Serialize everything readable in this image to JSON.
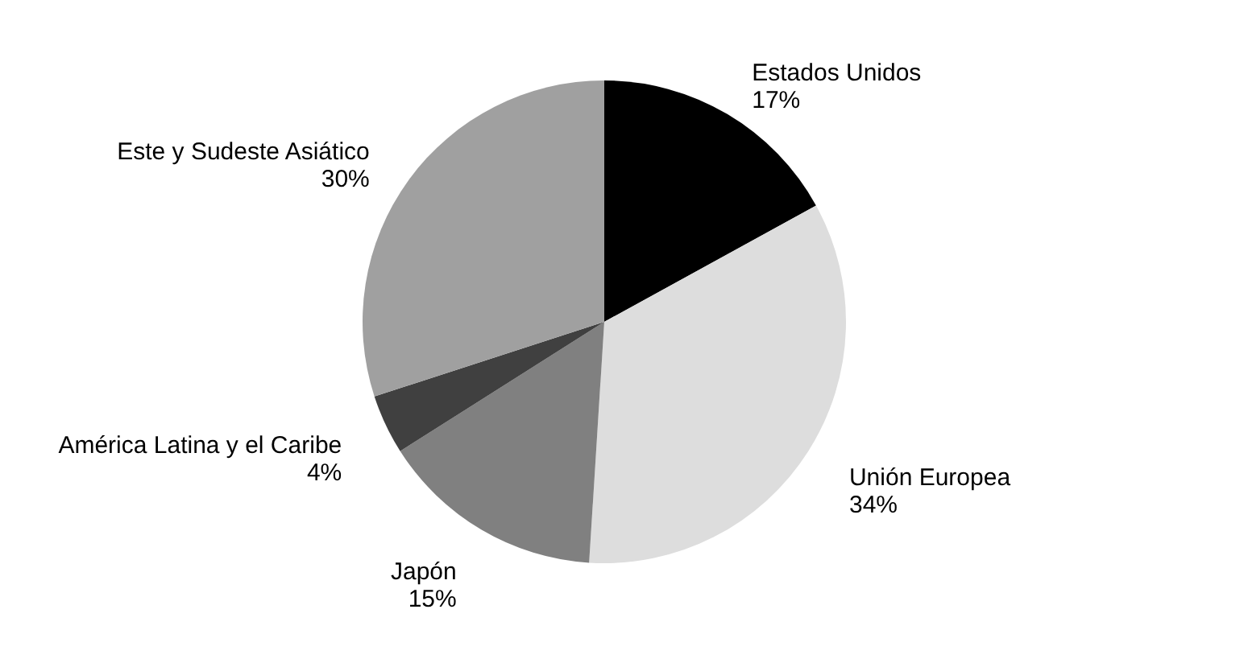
{
  "chart_data": {
    "type": "pie",
    "categories": [
      "Estados Unidos",
      "Unión Europea",
      "Japón",
      "América Latina y el Caribe",
      "Este y Sudeste Asiático"
    ],
    "values": [
      17,
      34,
      15,
      4,
      30
    ],
    "colors": [
      "#000000",
      "#dddddd",
      "#808080",
      "#404040",
      "#a0a0a0"
    ],
    "value_labels": [
      "17%",
      "34%",
      "15%",
      "4%",
      "30%"
    ],
    "legend": false
  }
}
